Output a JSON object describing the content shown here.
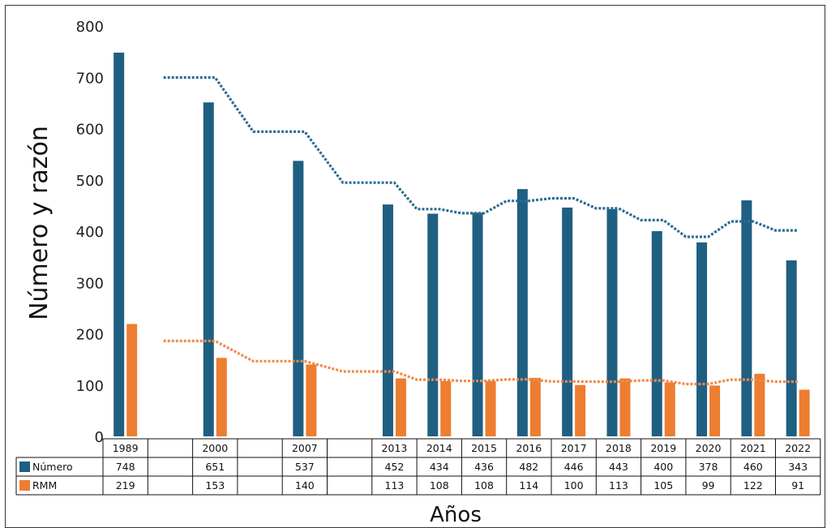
{
  "chart_data": {
    "type": "bar",
    "categories": [
      "1989",
      "",
      "2000",
      "",
      "2007",
      "",
      "2013",
      "2014",
      "2015",
      "2016",
      "2017",
      "2018",
      "2019",
      "2020",
      "2021",
      "2022"
    ],
    "series": [
      {
        "name": "Número",
        "color": "#1f5f82",
        "values": [
          748,
          null,
          651,
          null,
          537,
          null,
          452,
          434,
          436,
          482,
          446,
          443,
          400,
          378,
          460,
          343
        ]
      },
      {
        "name": "RMM",
        "color": "#ed7d31",
        "values": [
          219,
          null,
          153,
          null,
          140,
          null,
          113,
          108,
          108,
          114,
          100,
          113,
          105,
          99,
          122,
          91
        ]
      }
    ],
    "trendlines": [
      {
        "series": "Número",
        "style": "dotted",
        "color": "#2b6d92"
      },
      {
        "series": "RMM",
        "style": "dotted",
        "color": "#ef8a4a"
      }
    ],
    "xlabel": "Años",
    "ylabel": "Número y razón",
    "ylim": [
      0,
      800
    ],
    "yticks": [
      0,
      100,
      200,
      300,
      400,
      500,
      600,
      700,
      800
    ],
    "grid": false,
    "legend": "data-table-left",
    "data_table": true
  }
}
